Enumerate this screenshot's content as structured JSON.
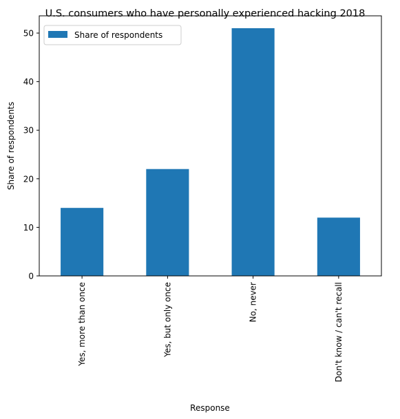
{
  "chart_data": {
    "type": "bar",
    "title": "U.S. consumers who have personally experienced hacking 2018",
    "xlabel": "Response",
    "ylabel": "Share of respondents",
    "categories": [
      "Yes, more than once",
      "Yes, but only once",
      "No, never",
      "Don't know / can't recall"
    ],
    "series": [
      {
        "name": "Share of respondents",
        "values": [
          14,
          22,
          51,
          12
        ],
        "color": "#1f77b4"
      }
    ],
    "ylim": [
      0,
      53.55
    ],
    "yticks": [
      0,
      10,
      20,
      30,
      40,
      50
    ],
    "legend": "top-left",
    "grid": false
  }
}
